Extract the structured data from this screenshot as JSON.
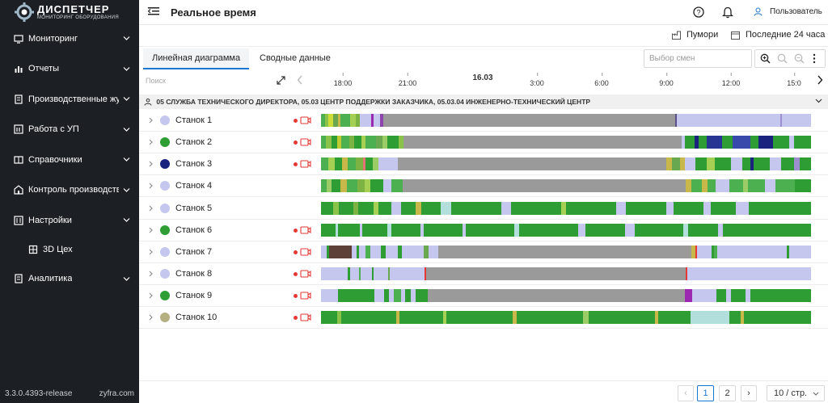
{
  "brand": {
    "name": "ДИСПЕТЧЕР",
    "tagline": "МОНИТОРИНГ ОБОРУДОВАНИЯ"
  },
  "sidebar": {
    "items": [
      {
        "label": "Мониторинг",
        "icon": "monitor-icon",
        "chevron": true
      },
      {
        "label": "Отчеты",
        "icon": "bar-chart-icon",
        "chevron": true
      },
      {
        "label": "Производственные журналы",
        "icon": "journal-icon",
        "chevron": true
      },
      {
        "label": "Работа с УП",
        "icon": "program-icon",
        "chevron": true
      },
      {
        "label": "Справочники",
        "icon": "book-icon",
        "chevron": true
      },
      {
        "label": "Контроль производства",
        "icon": "control-icon",
        "chevron": true
      },
      {
        "label": "Настройки",
        "icon": "settings-icon",
        "chevron": true
      },
      {
        "label": "3D Цех",
        "icon": "cube-icon",
        "chevron": false,
        "sub": true
      },
      {
        "label": "Аналитика",
        "icon": "analytics-icon",
        "chevron": true
      }
    ],
    "version": "3.3.0.4393-release",
    "site": "zyfra.com"
  },
  "header": {
    "title": "Реальное время",
    "user": "Пользователь"
  },
  "toolbar": {
    "location": "Пумори",
    "period": "Последние 24 часа"
  },
  "tabs": [
    {
      "label": "Линейная диаграмма",
      "active": true
    },
    {
      "label": "Сводные данные",
      "active": false
    }
  ],
  "shift_select": {
    "placeholder": "Выбор смен"
  },
  "search": {
    "placeholder": "Поиск"
  },
  "timeline": {
    "day": "16.03",
    "ticks": [
      "18:00",
      "21:00",
      "3:00",
      "6:00",
      "9:00",
      "12:00",
      "15:0"
    ]
  },
  "group": {
    "label": "05 СЛУЖБА ТЕХНИЧЕСКОГО ДИРЕКТОРА, 05.03 ЦЕНТР ПОДДЕРЖКИ ЗАКАЗЧИКА, 05.03.04 ИНЖЕНЕРНО-ТЕХНИЧЕСКИЙ ЦЕНТР"
  },
  "colors": {
    "accent": "#1976d2",
    "green": "#2e9e34",
    "idle_gray": "#9a9a9a",
    "lavender": "#c5c7ef",
    "navy": "#1a237e",
    "olive": "#b5b082",
    "recording": "#e53935"
  },
  "machines": [
    {
      "name": "Станок 1",
      "status": "#c5c7ef",
      "recording": true,
      "segments": [
        [
          "#4caf50",
          0.7
        ],
        [
          "#8bc34a",
          0.6
        ],
        [
          "#cddc39",
          1.0
        ],
        [
          "#6aa84f",
          0.8
        ],
        [
          "#c8b84a",
          0.5
        ],
        [
          "#4caf50",
          1.8
        ],
        [
          "#a6d054",
          1.0
        ],
        [
          "#7cb342",
          0.8
        ],
        [
          "#c5c7ef",
          2.0
        ],
        [
          "#9c27b0",
          0.5
        ],
        [
          "#c5c7ef",
          1.2
        ],
        [
          "#8e44ad",
          0.5
        ],
        [
          "#9a9a9a",
          53.6
        ],
        [
          "#5d4e8c",
          0.4
        ],
        [
          "#c5c7ef",
          19.0
        ],
        [
          "#9c8fd0",
          0.3
        ],
        [
          "#c5c7ef",
          5.3
        ]
      ]
    },
    {
      "name": "Станок 2",
      "status": "#2e9e34",
      "recording": true,
      "segments": [
        [
          "#4caf50",
          1.0
        ],
        [
          "#8bc34a",
          1.0
        ],
        [
          "#2e9e34",
          1.2
        ],
        [
          "#c0ca33",
          0.8
        ],
        [
          "#4caf50",
          1.5
        ],
        [
          "#7cb342",
          1.0
        ],
        [
          "#2e9e34",
          1.3
        ],
        [
          "#a6d054",
          0.9
        ],
        [
          "#4caf50",
          2.0
        ],
        [
          "#6aa84f",
          1.2
        ],
        [
          "#9ccc65",
          1.0
        ],
        [
          "#2e9e34",
          2.1
        ],
        [
          "#8bc34a",
          1.0
        ],
        [
          "#9a9a9a",
          54.0
        ],
        [
          "#c5c7ef",
          0.5
        ],
        [
          "#2e9e34",
          2.0
        ],
        [
          "#1a237e",
          0.8
        ],
        [
          "#2e9e34",
          1.5
        ],
        [
          "#283593",
          3.0
        ],
        [
          "#2e9e34",
          2.0
        ],
        [
          "#3949ab",
          3.5
        ],
        [
          "#2e9e34",
          1.5
        ],
        [
          "#1a237e",
          2.8
        ],
        [
          "#2e9e34",
          3.2
        ],
        [
          "#c5c7ef",
          1.0
        ],
        [
          "#2e9e34",
          3.2
        ]
      ]
    },
    {
      "name": "Станок 3",
      "status": "#1a237e",
      "recording": true,
      "segments": [
        [
          "#4caf50",
          1.3
        ],
        [
          "#a6d054",
          1.2
        ],
        [
          "#2e9e34",
          1.3
        ],
        [
          "#c8b84a",
          1.0
        ],
        [
          "#4caf50",
          1.5
        ],
        [
          "#7cb342",
          1.3
        ],
        [
          "#e57373",
          0.5
        ],
        [
          "#2e9e34",
          1.4
        ],
        [
          "#9ccc65",
          1.0
        ],
        [
          "#c5c7ef",
          3.5
        ],
        [
          "#9a9a9a",
          49.0
        ],
        [
          "#c8b84a",
          1.0
        ],
        [
          "#6aa84f",
          1.5
        ],
        [
          "#c8b84a",
          0.8
        ],
        [
          "#c5c7ef",
          2.0
        ],
        [
          "#2e9e34",
          2.0
        ],
        [
          "#a6d054",
          1.5
        ],
        [
          "#2e9e34",
          3.0
        ],
        [
          "#c5c7ef",
          2.0
        ],
        [
          "#2e9e34",
          1.5
        ],
        [
          "#1a237e",
          0.5
        ],
        [
          "#2e9e34",
          3.0
        ],
        [
          "#c5c7ef",
          2.0
        ],
        [
          "#2e9e34",
          2.5
        ],
        [
          "#9c8fd0",
          1.0
        ],
        [
          "#2e9e34",
          2.0
        ]
      ]
    },
    {
      "name": "Станок 4",
      "status": "#c5c7ef",
      "recording": false,
      "segments": [
        [
          "#4caf50",
          1.0
        ],
        [
          "#9ccc65",
          1.0
        ],
        [
          "#2e9e34",
          1.5
        ],
        [
          "#c8b84a",
          1.2
        ],
        [
          "#4caf50",
          2.0
        ],
        [
          "#7cb342",
          1.3
        ],
        [
          "#a6d054",
          1.0
        ],
        [
          "#2e9e34",
          2.5
        ],
        [
          "#c5c7ef",
          1.5
        ],
        [
          "#4caf50",
          2.0
        ],
        [
          "#9a9a9a",
          52.0
        ],
        [
          "#c8b84a",
          1.0
        ],
        [
          "#4caf50",
          2.0
        ],
        [
          "#c8b84a",
          1.0
        ],
        [
          "#4caf50",
          1.5
        ],
        [
          "#c5c7ef",
          2.5
        ],
        [
          "#4caf50",
          2.5
        ],
        [
          "#9ccc65",
          1.0
        ],
        [
          "#4caf50",
          3.0
        ],
        [
          "#c5c7ef",
          2.0
        ],
        [
          "#4caf50",
          3.5
        ],
        [
          "#2e9e34",
          3.0
        ]
      ]
    },
    {
      "name": "Станок 5",
      "status": "#c5c7ef",
      "recording": false,
      "segments": [
        [
          "#2e9e34",
          2.5
        ],
        [
          "#8bc34a",
          1.0
        ],
        [
          "#2e9e34",
          3.0
        ],
        [
          "#7cb342",
          1.0
        ],
        [
          "#2e9e34",
          3.0
        ],
        [
          "#a6d054",
          1.0
        ],
        [
          "#2e9e34",
          2.5
        ],
        [
          "#c5c7ef",
          2.0
        ],
        [
          "#2e9e34",
          3.0
        ],
        [
          "#c8b84a",
          1.0
        ],
        [
          "#2e9e34",
          4.0
        ],
        [
          "#b2dfdb",
          2.0
        ],
        [
          "#2e9e34",
          10.0
        ],
        [
          "#c5c7ef",
          2.0
        ],
        [
          "#2e9e34",
          10.0
        ],
        [
          "#a6d054",
          1.0
        ],
        [
          "#2e9e34",
          10.0
        ],
        [
          "#c5c7ef",
          2.0
        ],
        [
          "#2e9e34",
          8.0
        ],
        [
          "#c5c7ef",
          1.5
        ],
        [
          "#2e9e34",
          6.0
        ],
        [
          "#c5c7ef",
          1.5
        ],
        [
          "#2e9e34",
          5.0
        ],
        [
          "#c5c7ef",
          2.5
        ],
        [
          "#2e9e34",
          12.5
        ]
      ]
    },
    {
      "name": "Станок 6",
      "status": "#2e9e34",
      "recording": true,
      "segments": [
        [
          "#2e9e34",
          3.0
        ],
        [
          "#b2dfdb",
          0.5
        ],
        [
          "#2e9e34",
          4.5
        ],
        [
          "#c5c7ef",
          0.5
        ],
        [
          "#2e9e34",
          5.0
        ],
        [
          "#b2dfdb",
          0.8
        ],
        [
          "#2e9e34",
          6.0
        ],
        [
          "#c5c7ef",
          0.6
        ],
        [
          "#2e9e34",
          8.0
        ],
        [
          "#c5c7ef",
          0.6
        ],
        [
          "#2e9e34",
          10.0
        ],
        [
          "#b2dfdb",
          1.0
        ],
        [
          "#2e9e34",
          12.0
        ],
        [
          "#c5c7ef",
          1.5
        ],
        [
          "#2e9e34",
          8.0
        ],
        [
          "#c5c7ef",
          2.0
        ],
        [
          "#2e9e34",
          10.0
        ],
        [
          "#b2dfdb",
          1.0
        ],
        [
          "#2e9e34",
          6.0
        ],
        [
          "#c5c7ef",
          1.0
        ],
        [
          "#2e9e34",
          18.0
        ]
      ]
    },
    {
      "name": "Станок 7",
      "status": "#c5c7ef",
      "recording": true,
      "segments": [
        [
          "#c5c7ef",
          1.2
        ],
        [
          "#2e9e34",
          0.5
        ],
        [
          "#5d4037",
          4.5
        ],
        [
          "#c5c7ef",
          1.0
        ],
        [
          "#2e9e34",
          0.6
        ],
        [
          "#c5c7ef",
          1.3
        ],
        [
          "#4caf50",
          1.0
        ],
        [
          "#c5c7ef",
          2.0
        ],
        [
          "#2e9e34",
          1.0
        ],
        [
          "#c5c7ef",
          2.5
        ],
        [
          "#2e9e34",
          0.8
        ],
        [
          "#c5c7ef",
          4.5
        ],
        [
          "#6aa84f",
          1.0
        ],
        [
          "#c5c7ef",
          2.0
        ],
        [
          "#9a9a9a",
          51.5
        ],
        [
          "#c8b84a",
          0.8
        ],
        [
          "#e53935",
          0.3
        ],
        [
          "#c5c7ef",
          3.0
        ],
        [
          "#2e9e34",
          0.5
        ],
        [
          "#4caf50",
          0.7
        ],
        [
          "#c5c7ef",
          14.0
        ],
        [
          "#2e9e34",
          0.5
        ],
        [
          "#c5c7ef",
          4.5
        ]
      ]
    },
    {
      "name": "Станок 8",
      "status": "#c5c7ef",
      "recording": true,
      "segments": [
        [
          "#c5c7ef",
          5.5
        ],
        [
          "#2e9e34",
          0.4
        ],
        [
          "#c5c7ef",
          1.8
        ],
        [
          "#4caf50",
          0.4
        ],
        [
          "#c5c7ef",
          2.3
        ],
        [
          "#2e9e34",
          0.3
        ],
        [
          "#c5c7ef",
          3.0
        ],
        [
          "#6aa84f",
          0.4
        ],
        [
          "#c5c7ef",
          7.0
        ],
        [
          "#e53935",
          0.3
        ],
        [
          "#9a9a9a",
          53.0
        ],
        [
          "#e53935",
          0.4
        ],
        [
          "#c5c7ef",
          25.2
        ]
      ]
    },
    {
      "name": "Станок 9",
      "status": "#2e9e34",
      "recording": true,
      "segments": [
        [
          "#c5c7ef",
          3.5
        ],
        [
          "#2e9e34",
          7.5
        ],
        [
          "#c5c7ef",
          2.0
        ],
        [
          "#2e9e34",
          1.0
        ],
        [
          "#c5c7ef",
          1.0
        ],
        [
          "#4caf50",
          1.5
        ],
        [
          "#c5c7ef",
          0.8
        ],
        [
          "#2e9e34",
          1.2
        ],
        [
          "#c5c7ef",
          1.0
        ],
        [
          "#2e9e34",
          2.5
        ],
        [
          "#9a9a9a",
          53.0
        ],
        [
          "#9c27b0",
          1.5
        ],
        [
          "#c5c7ef",
          5.0
        ],
        [
          "#2e9e34",
          2.0
        ],
        [
          "#c5c7ef",
          1.0
        ],
        [
          "#2e9e34",
          3.0
        ],
        [
          "#c5c7ef",
          1.0
        ],
        [
          "#2e9e34",
          12.5
        ]
      ]
    },
    {
      "name": "Станок 10",
      "status": "#b5b082",
      "recording": true,
      "segments": [
        [
          "#2e9e34",
          3.0
        ],
        [
          "#8bc34a",
          0.6
        ],
        [
          "#2e9e34",
          10.0
        ],
        [
          "#c8b84a",
          0.6
        ],
        [
          "#2e9e34",
          8.0
        ],
        [
          "#a6d054",
          0.6
        ],
        [
          "#2e9e34",
          12.0
        ],
        [
          "#c8b84a",
          0.8
        ],
        [
          "#2e9e34",
          12.0
        ],
        [
          "#9ccc65",
          1.0
        ],
        [
          "#2e9e34",
          12.0
        ],
        [
          "#c8b84a",
          0.6
        ],
        [
          "#2e9e34",
          6.0
        ],
        [
          "#b2dfdb",
          7.0
        ],
        [
          "#2e9e34",
          2.0
        ],
        [
          "#c8b84a",
          0.6
        ],
        [
          "#2e9e34",
          12.2
        ]
      ]
    }
  ],
  "pagination": {
    "pages": [
      "1",
      "2"
    ],
    "current": "1",
    "page_size": "10 / стр."
  }
}
